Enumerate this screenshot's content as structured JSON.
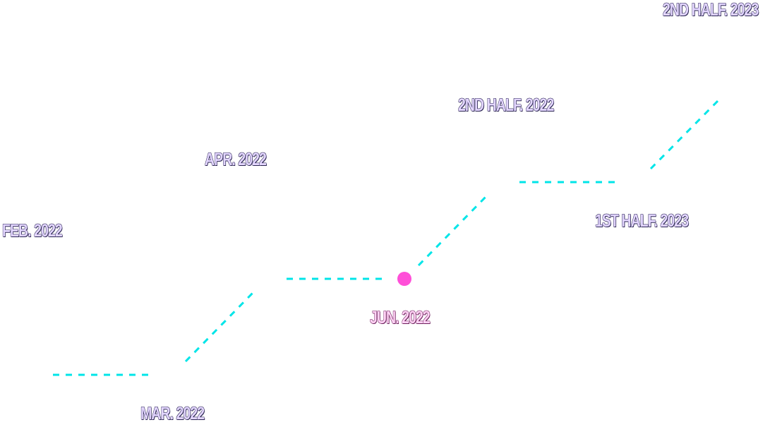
{
  "milestones": [
    {
      "label": "Feb. 2022"
    },
    {
      "label": "Mar. 2022"
    },
    {
      "label": "Apr. 2022"
    },
    {
      "label": "Jun. 2022",
      "current": true
    },
    {
      "label": "2nd Half. 2022"
    },
    {
      "label": "1st Half. 2023"
    },
    {
      "label": "2nd Half. 2023"
    }
  ],
  "colors": {
    "path": "#00e5e8",
    "current_marker": "#ff4fd8",
    "label_text": "#e3d6ff",
    "current_label_text": "#ffd2f4"
  }
}
